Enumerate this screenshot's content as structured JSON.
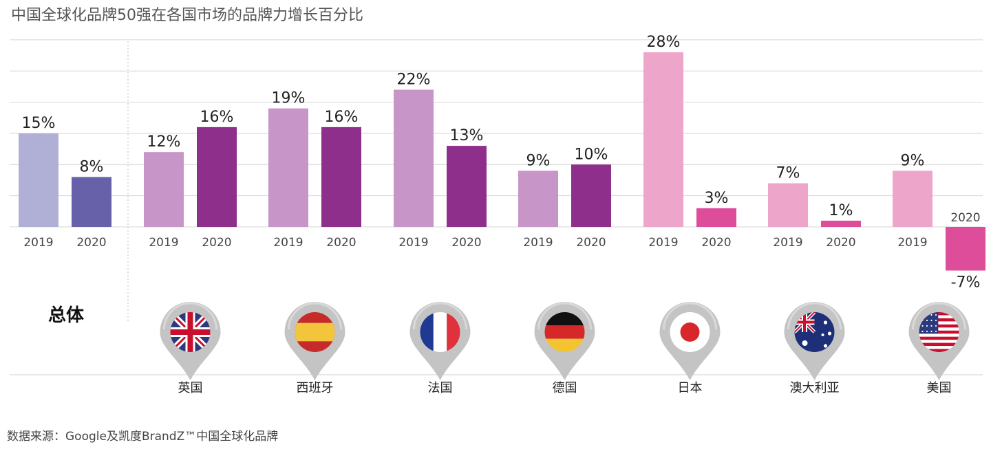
{
  "chart_data": {
    "type": "bar",
    "title": "中国全球化品牌50强在各国市场的品牌力增长百分比",
    "source": "数据来源：Google及凯度BrandZ™中国全球化品牌",
    "ylim": [
      -7,
      30
    ],
    "series_labels": [
      "2019",
      "2020"
    ],
    "groups": [
      {
        "name": "总体",
        "values": [
          15,
          8
        ],
        "labels": [
          "15%",
          "8%"
        ],
        "colors": [
          "#B0B0D6",
          "#6661A8"
        ],
        "flag": "none"
      },
      {
        "name": "英国",
        "values": [
          12,
          16
        ],
        "labels": [
          "12%",
          "16%"
        ],
        "colors": [
          "#C795C7",
          "#8E2F8C"
        ],
        "flag": "uk"
      },
      {
        "name": "西班牙",
        "values": [
          19,
          16
        ],
        "labels": [
          "19%",
          "16%"
        ],
        "colors": [
          "#C795C7",
          "#8E2F8C"
        ],
        "flag": "spain"
      },
      {
        "name": "法国",
        "values": [
          22,
          13
        ],
        "labels": [
          "22%",
          "13%"
        ],
        "colors": [
          "#C795C7",
          "#8E2F8C"
        ],
        "flag": "france"
      },
      {
        "name": "德国",
        "values": [
          9,
          10
        ],
        "labels": [
          "9%",
          "10%"
        ],
        "colors": [
          "#C795C7",
          "#8E2F8C"
        ],
        "flag": "germany"
      },
      {
        "name": "日本",
        "values": [
          28,
          3
        ],
        "labels": [
          "28%",
          "3%"
        ],
        "colors": [
          "#EDA6CA",
          "#DE4D9A"
        ],
        "flag": "japan"
      },
      {
        "name": "澳大利亚",
        "values": [
          7,
          1
        ],
        "labels": [
          "7%",
          "1%"
        ],
        "colors": [
          "#EDA6CA",
          "#DE4D9A"
        ],
        "flag": "australia"
      },
      {
        "name": "美国",
        "values": [
          9,
          -7
        ],
        "labels": [
          "9%",
          "-7%"
        ],
        "colors": [
          "#EDA6CA",
          "#DE4D9A"
        ],
        "flag": "usa"
      }
    ]
  }
}
